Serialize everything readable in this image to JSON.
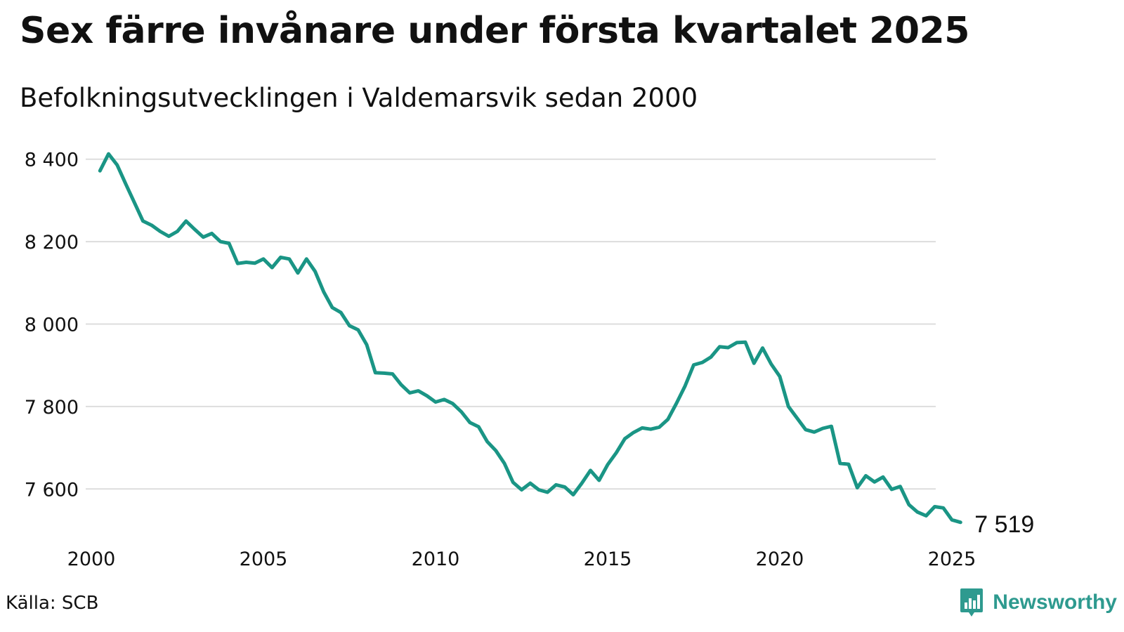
{
  "colors": {
    "line": "#1a9585",
    "grid": "#dddddd",
    "brand": "#2e9a8f"
  },
  "source": "Källa: SCB",
  "brand": {
    "name": "Newsworthy",
    "icon": "newsworthy-chart-icon"
  },
  "chart_data": {
    "type": "line",
    "title": "Sex färre invånare under första kvartalet 2025",
    "subtitle": "Befolkningsutvecklingen i Valdemarsvik sedan 2000",
    "xlabel": "",
    "ylabel": "",
    "xlim": [
      2000,
      2025
    ],
    "ylim": [
      7500,
      8420
    ],
    "xticks": [
      2000,
      2005,
      2010,
      2015,
      2020,
      2025
    ],
    "xtick_labels": [
      "2000",
      "2005",
      "2010",
      "2015",
      "2020",
      "2025"
    ],
    "yticks": [
      7600,
      7800,
      8000,
      8200,
      8400
    ],
    "ytick_labels": [
      "7 600",
      "7 800",
      "8 000",
      "8 200",
      "8 400"
    ],
    "grid": "horizontal",
    "end_label": "7 519",
    "series": [
      {
        "x": [
          2000.25,
          2000.5,
          2000.75,
          2001.0,
          2001.25,
          2001.5,
          2001.75,
          2002.0,
          2002.25,
          2002.5,
          2002.75,
          2003.0,
          2003.25,
          2003.5,
          2003.75,
          2004.0,
          2004.25,
          2004.5,
          2004.75,
          2005.0,
          2005.25,
          2005.5,
          2005.75,
          2006.0,
          2006.25,
          2006.5,
          2006.75,
          2007.0,
          2007.25,
          2007.5,
          2007.75,
          2008.0,
          2008.25,
          2008.5,
          2008.75,
          2009.0,
          2009.25,
          2009.5,
          2009.75,
          2010.0,
          2010.25,
          2010.5,
          2010.75,
          2011.0,
          2011.25,
          2011.5,
          2011.75,
          2012.0,
          2012.25,
          2012.5,
          2012.75,
          2013.0,
          2013.25,
          2013.5,
          2013.75,
          2014.0,
          2014.25,
          2014.5,
          2014.75,
          2015.0,
          2015.25,
          2015.5,
          2015.75,
          2016.0,
          2016.25,
          2016.5,
          2016.75,
          2017.0,
          2017.25,
          2017.5,
          2017.75,
          2018.0,
          2018.25,
          2018.5,
          2018.75,
          2019.0,
          2019.25,
          2019.5,
          2019.75,
          2020.0,
          2020.25,
          2020.5,
          2020.75,
          2021.0,
          2021.25,
          2021.5,
          2021.75,
          2022.0,
          2022.25,
          2022.5,
          2022.75,
          2023.0,
          2023.25,
          2023.5,
          2023.75,
          2024.0,
          2024.25,
          2024.5,
          2024.75,
          2025.0,
          2025.25
        ],
        "values": [
          8372,
          8413,
          8386,
          8340,
          8295,
          8250,
          8240,
          8225,
          8213,
          8225,
          8250,
          8230,
          8211,
          8220,
          8200,
          8196,
          8147,
          8150,
          8148,
          8158,
          8137,
          8162,
          8158,
          8124,
          8158,
          8128,
          8078,
          8040,
          8028,
          7996,
          7986,
          7950,
          7882,
          7881,
          7879,
          7853,
          7833,
          7838,
          7826,
          7811,
          7817,
          7807,
          7787,
          7761,
          7751,
          7715,
          7693,
          7662,
          7616,
          7598,
          7614,
          7598,
          7592,
          7610,
          7605,
          7586,
          7614,
          7645,
          7621,
          7659,
          7688,
          7722,
          7737,
          7748,
          7745,
          7750,
          7769,
          7808,
          7850,
          7901,
          7907,
          7920,
          7945,
          7943,
          7955,
          7956,
          7905,
          7942,
          7903,
          7873,
          7800,
          7772,
          7744,
          7738,
          7747,
          7752,
          7662,
          7660,
          7603,
          7632,
          7617,
          7629,
          7599,
          7606,
          7562,
          7544,
          7535,
          7557,
          7554,
          7525,
          7519
        ]
      }
    ]
  }
}
